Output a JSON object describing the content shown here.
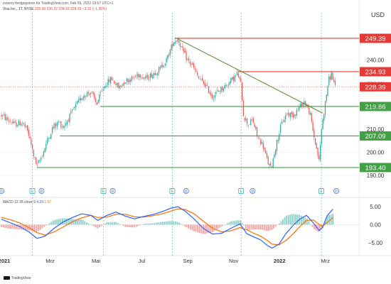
{
  "header": {
    "attribution": "zvanny fredgogstore für TradingView.com, Feb 09, 2022 19:57 UTC+1",
    "symbol": "Visa Inc., 1T, NYSE",
    "ohlc": "226.90  230.22  224.93  228.39  −3.15 (−1.36%)"
  },
  "footer": {
    "brand": "TradingView"
  },
  "chart_data": {
    "type": "candlestick",
    "currency": "USD",
    "x_axis": {
      "labels": [
        "2021",
        "Mrz",
        "Mai",
        "Jul",
        "Sep",
        "Nov",
        "2022",
        "Mrz"
      ],
      "bold": [
        "2021",
        "2022"
      ],
      "range_months": [
        0,
        15
      ]
    },
    "y_axis": {
      "range": [
        186,
        258
      ],
      "ticks": [
        190,
        200,
        210,
        220,
        230,
        240
      ]
    },
    "price_levels": [
      {
        "value": 249.39,
        "label": "249.39",
        "color": "#e53935"
      },
      {
        "value": 234.93,
        "label": "234.93",
        "color": "#e53935"
      },
      {
        "value": 228.39,
        "label": "228.39",
        "color": "#e53935"
      },
      {
        "value": 219.86,
        "label": "219.86",
        "color": "#43a047"
      },
      {
        "value": 207.09,
        "label": "207.09",
        "color": "#43a047"
      },
      {
        "value": 193.4,
        "label": "193.40",
        "color": "#43a047"
      }
    ],
    "trendline": {
      "from": {
        "month": 7.6,
        "value": 249.6
      },
      "to": {
        "month": 14.0,
        "value": 217.0
      },
      "color": "#558b2f"
    },
    "price_path": [
      [
        0.0,
        216
      ],
      [
        0.3,
        214
      ],
      [
        0.6,
        212
      ],
      [
        0.9,
        213
      ],
      [
        1.15,
        209
      ],
      [
        1.4,
        199
      ],
      [
        1.55,
        194
      ],
      [
        1.75,
        198
      ],
      [
        2.0,
        205
      ],
      [
        2.25,
        211
      ],
      [
        2.5,
        213
      ],
      [
        2.7,
        211
      ],
      [
        3.0,
        216
      ],
      [
        3.3,
        221
      ],
      [
        3.6,
        225
      ],
      [
        3.9,
        226
      ],
      [
        4.15,
        221
      ],
      [
        4.5,
        229
      ],
      [
        4.8,
        232
      ],
      [
        5.1,
        228
      ],
      [
        5.4,
        231
      ],
      [
        5.7,
        232
      ],
      [
        6.0,
        234
      ],
      [
        6.3,
        232
      ],
      [
        6.6,
        234
      ],
      [
        6.9,
        236
      ],
      [
        7.2,
        240
      ],
      [
        7.5,
        248
      ],
      [
        7.7,
        249
      ],
      [
        7.9,
        244
      ],
      [
        8.1,
        240
      ],
      [
        8.3,
        238
      ],
      [
        8.6,
        232
      ],
      [
        8.9,
        229
      ],
      [
        9.2,
        224
      ],
      [
        9.5,
        227
      ],
      [
        9.8,
        229
      ],
      [
        10.1,
        232
      ],
      [
        10.3,
        234
      ],
      [
        10.45,
        229
      ],
      [
        10.55,
        216
      ],
      [
        10.75,
        212
      ],
      [
        10.95,
        214
      ],
      [
        11.15,
        207
      ],
      [
        11.4,
        203
      ],
      [
        11.6,
        196
      ],
      [
        11.75,
        193
      ],
      [
        11.95,
        202
      ],
      [
        12.2,
        212
      ],
      [
        12.45,
        217
      ],
      [
        12.7,
        216
      ],
      [
        12.95,
        219
      ],
      [
        13.2,
        222
      ],
      [
        13.45,
        217
      ],
      [
        13.6,
        208
      ],
      [
        13.75,
        201
      ],
      [
        13.85,
        196
      ],
      [
        13.95,
        210
      ],
      [
        14.1,
        220
      ],
      [
        14.25,
        231
      ],
      [
        14.4,
        234
      ],
      [
        14.55,
        228
      ]
    ],
    "event_markers": [
      {
        "month": 0.0,
        "letter": "D"
      },
      {
        "month": 1.35,
        "letter": "E"
      },
      {
        "month": 1.75,
        "letter": "D"
      },
      {
        "month": 4.45,
        "letter": "E"
      },
      {
        "month": 4.85,
        "letter": "D"
      },
      {
        "month": 7.45,
        "letter": "E"
      },
      {
        "month": 8.05,
        "letter": "D"
      },
      {
        "month": 10.45,
        "letter": "E"
      },
      {
        "month": 10.95,
        "letter": "D"
      },
      {
        "month": 13.95,
        "letter": "E"
      },
      {
        "month": 14.6,
        "letter": "D"
      }
    ],
    "event_lines_months": [
      1.35,
      4.45,
      7.45,
      10.45,
      13.95
    ],
    "macd": {
      "title": "MACD",
      "params": "12 26 close 9",
      "values_display": [
        "4.29",
        "1.97"
      ],
      "range": [
        -7,
        6
      ],
      "ticks": [
        {
          "value": 5,
          "label": "5.00"
        },
        {
          "value": 0,
          "label": "0.00"
        },
        {
          "value": -5,
          "label": "−5.00"
        }
      ],
      "macd_line": [
        [
          0.0,
          1.5
        ],
        [
          0.4,
          0.5
        ],
        [
          0.8,
          -0.5
        ],
        [
          1.2,
          -2.0
        ],
        [
          1.55,
          -3.8
        ],
        [
          1.9,
          -3.2
        ],
        [
          2.3,
          -1.0
        ],
        [
          2.7,
          0.8
        ],
        [
          3.1,
          2.0
        ],
        [
          3.5,
          3.0
        ],
        [
          3.9,
          2.6
        ],
        [
          4.2,
          1.2
        ],
        [
          4.6,
          2.6
        ],
        [
          5.0,
          3.5
        ],
        [
          5.4,
          2.4
        ],
        [
          5.8,
          1.6
        ],
        [
          6.2,
          2.3
        ],
        [
          6.6,
          2.8
        ],
        [
          7.0,
          3.6
        ],
        [
          7.4,
          4.6
        ],
        [
          7.7,
          5.0
        ],
        [
          8.0,
          3.8
        ],
        [
          8.4,
          1.6
        ],
        [
          8.8,
          -1.0
        ],
        [
          9.2,
          -2.6
        ],
        [
          9.6,
          -2.4
        ],
        [
          10.0,
          -1.0
        ],
        [
          10.4,
          0.2
        ],
        [
          10.7,
          -2.5
        ],
        [
          11.0,
          -3.4
        ],
        [
          11.3,
          -4.2
        ],
        [
          11.6,
          -5.8
        ],
        [
          11.8,
          -6.5
        ],
        [
          12.1,
          -5.4
        ],
        [
          12.4,
          -2.5
        ],
        [
          12.7,
          -0.3
        ],
        [
          13.0,
          1.5
        ],
        [
          13.3,
          2.6
        ],
        [
          13.6,
          0.5
        ],
        [
          13.85,
          -1.6
        ],
        [
          14.0,
          -0.8
        ],
        [
          14.2,
          2.5
        ],
        [
          14.45,
          4.3
        ]
      ],
      "signal_line": [
        [
          0.0,
          2.0
        ],
        [
          0.4,
          1.4
        ],
        [
          0.8,
          0.5
        ],
        [
          1.2,
          -0.8
        ],
        [
          1.55,
          -2.2
        ],
        [
          1.9,
          -2.9
        ],
        [
          2.3,
          -2.0
        ],
        [
          2.7,
          -0.6
        ],
        [
          3.1,
          0.8
        ],
        [
          3.5,
          1.9
        ],
        [
          3.9,
          2.6
        ],
        [
          4.2,
          2.0
        ],
        [
          4.6,
          2.1
        ],
        [
          5.0,
          2.9
        ],
        [
          5.4,
          2.9
        ],
        [
          5.8,
          2.2
        ],
        [
          6.2,
          2.1
        ],
        [
          6.6,
          2.5
        ],
        [
          7.0,
          3.0
        ],
        [
          7.4,
          3.8
        ],
        [
          7.7,
          4.4
        ],
        [
          8.0,
          4.2
        ],
        [
          8.4,
          3.0
        ],
        [
          8.8,
          1.0
        ],
        [
          9.2,
          -1.0
        ],
        [
          9.6,
          -2.0
        ],
        [
          10.0,
          -1.7
        ],
        [
          10.4,
          -0.8
        ],
        [
          10.7,
          -1.4
        ],
        [
          11.0,
          -2.4
        ],
        [
          11.3,
          -3.2
        ],
        [
          11.6,
          -4.4
        ],
        [
          11.8,
          -5.4
        ],
        [
          12.1,
          -5.6
        ],
        [
          12.4,
          -4.4
        ],
        [
          12.7,
          -2.6
        ],
        [
          13.0,
          -0.6
        ],
        [
          13.3,
          1.2
        ],
        [
          13.6,
          1.3
        ],
        [
          13.85,
          0.1
        ],
        [
          14.0,
          -0.4
        ],
        [
          14.2,
          0.6
        ],
        [
          14.45,
          2.0
        ]
      ]
    }
  },
  "colors": {
    "up": "#26a69a",
    "down": "#ef5350",
    "macd_line": "#2962ff",
    "signal_line": "#ff6d00",
    "grid": "#eef0f3",
    "event_line": "#26a69a"
  }
}
